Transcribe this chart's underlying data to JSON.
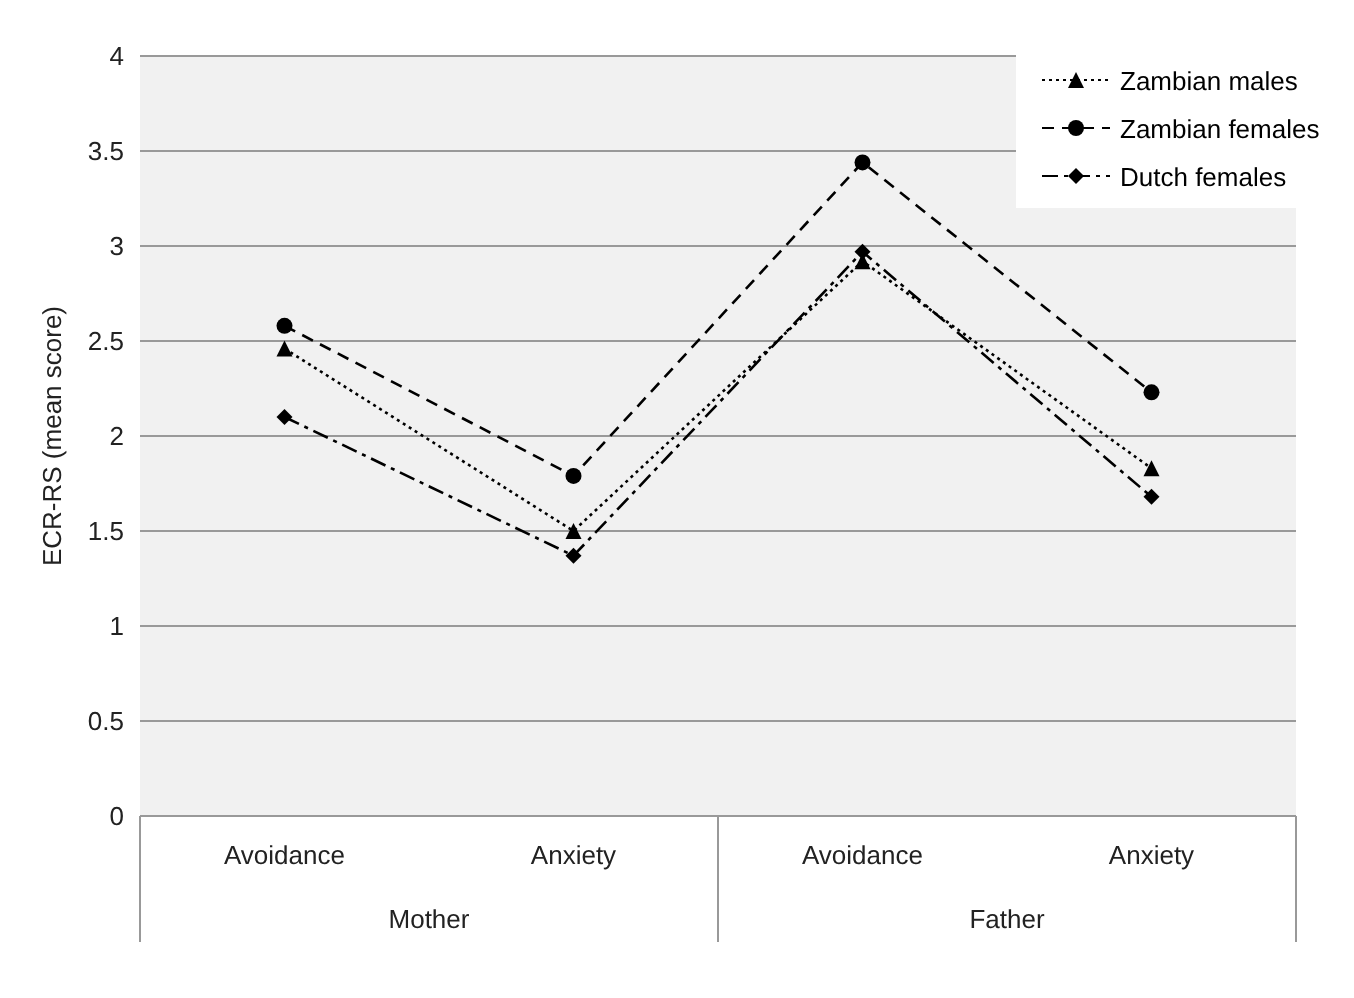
{
  "chart_data": {
    "type": "line",
    "ylabel": "ECR-RS (mean score)",
    "categories": [
      "Avoidance",
      "Anxiety",
      "Avoidance",
      "Anxiety"
    ],
    "annotations": [
      "Mother",
      "Father"
    ],
    "series": [
      {
        "name": "Zambian males",
        "color": "#000000",
        "marker": "triangle",
        "line_style": "dotted",
        "values": [
          2.46,
          1.5,
          2.92,
          1.83
        ]
      },
      {
        "name": "Zambian females",
        "color": "#000000",
        "marker": "circle",
        "line_style": "dashed",
        "values": [
          2.58,
          1.79,
          3.44,
          2.23
        ]
      },
      {
        "name": "Dutch females",
        "color": "#000000",
        "marker": "diamond",
        "line_style": "dashdot",
        "values": [
          2.1,
          1.37,
          2.97,
          1.68
        ]
      }
    ],
    "ylim": [
      0,
      4
    ],
    "yticks": [
      0,
      0.5,
      1,
      1.5,
      2,
      2.5,
      3,
      3.5,
      4
    ],
    "grid": "y",
    "legend": "top right"
  }
}
